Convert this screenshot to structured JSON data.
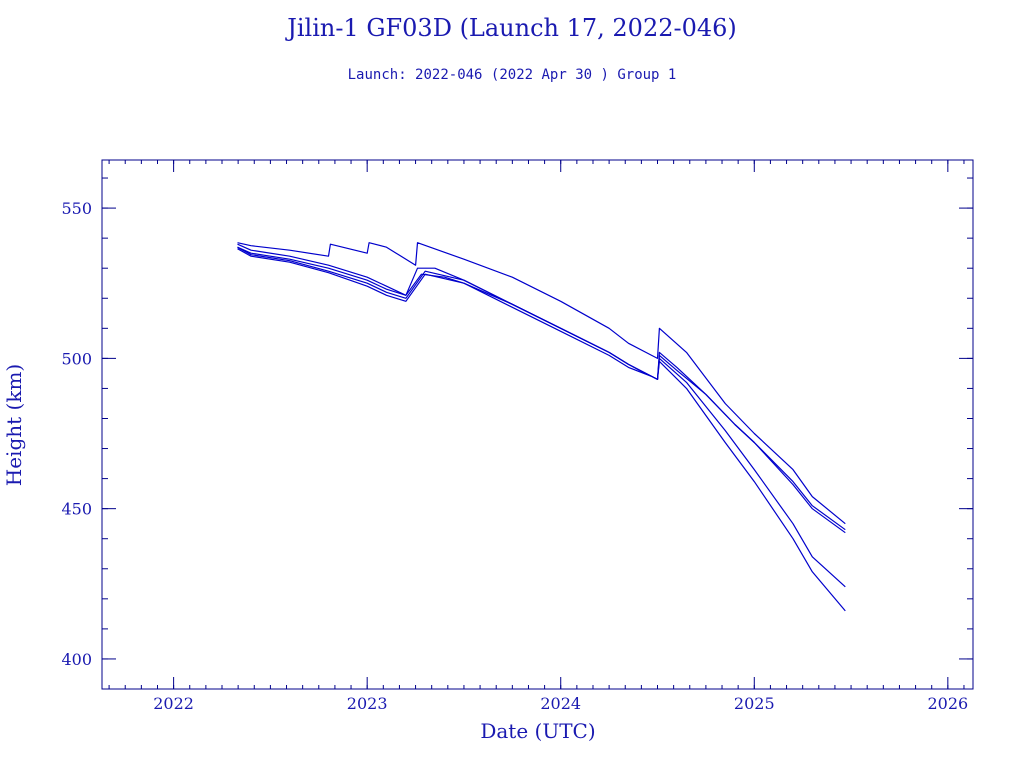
{
  "title": "Jilin-1 GF03D (Launch 17, 2022-046)",
  "subtitle": "Launch: 2022-046  (2022 Apr 30 )  Group 1",
  "colors": {
    "axis": "#00008b",
    "line": "#0000cc",
    "text": "#1a1ab0"
  },
  "chart_data": {
    "type": "line",
    "title": "Jilin-1 GF03D (Launch 17, 2022-046)",
    "subtitle": "Launch: 2022-046  (2022 Apr 30 )  Group 1",
    "xlabel": "Date (UTC)",
    "ylabel": "Height (km)",
    "xlim": [
      2021.63,
      2026.13
    ],
    "ylim": [
      390,
      566
    ],
    "xticks": [
      2022,
      2023,
      2024,
      2025,
      2026
    ],
    "xtick_labels": [
      "2022",
      "2023",
      "2024",
      "2025",
      "2026"
    ],
    "yticks": [
      400,
      450,
      500,
      550
    ],
    "ytick_labels": [
      "400",
      "450",
      "500",
      "550"
    ],
    "grid": false,
    "legend": "none",
    "series": [
      {
        "x": [
          2022.33,
          2022.4,
          2022.6,
          2022.8,
          2022.81,
          2023.0,
          2023.01,
          2023.1,
          2023.15,
          2023.25,
          2023.26,
          2023.5,
          2023.75,
          2024.0,
          2024.25,
          2024.35,
          2024.47,
          2024.5,
          2024.51,
          2024.65,
          2024.85,
          2025.0,
          2025.2,
          2025.3,
          2025.47
        ],
        "y": [
          538.5,
          537.5,
          536,
          534,
          538,
          535,
          538.5,
          537,
          535,
          531,
          538.5,
          533,
          527,
          519,
          510,
          505,
          501,
          500,
          510,
          502,
          485,
          475,
          463,
          454,
          445
        ]
      },
      {
        "x": [
          2022.33,
          2022.4,
          2022.6,
          2022.8,
          2023.0,
          2023.1,
          2023.2,
          2023.26,
          2023.35,
          2023.5,
          2023.75,
          2024.0,
          2024.25,
          2024.35,
          2024.47,
          2024.5,
          2024.51,
          2024.6,
          2024.75,
          2024.9,
          2025.0,
          2025.2,
          2025.3,
          2025.47
        ],
        "y": [
          538,
          536,
          534,
          531,
          527,
          524,
          521,
          530,
          530,
          526,
          518,
          510,
          502,
          498,
          494,
          493,
          502,
          497,
          488,
          478,
          472,
          459,
          451,
          443
        ]
      },
      {
        "x": [
          2022.33,
          2022.4,
          2022.6,
          2022.8,
          2023.0,
          2023.1,
          2023.2,
          2023.28,
          2023.4,
          2023.5,
          2023.75,
          2024.0,
          2024.25,
          2024.35,
          2024.47,
          2024.5,
          2024.51,
          2024.6,
          2024.75,
          2024.9,
          2025.0,
          2025.2,
          2025.3,
          2025.47
        ],
        "y": [
          537,
          535,
          533,
          530,
          526,
          523,
          521,
          528,
          527,
          525,
          518,
          510,
          502,
          498,
          494,
          493,
          501,
          496,
          488,
          478,
          472,
          458,
          450,
          442
        ]
      },
      {
        "x": [
          2022.33,
          2022.4,
          2022.6,
          2022.8,
          2023.0,
          2023.1,
          2023.2,
          2023.3,
          2023.5,
          2023.75,
          2024.0,
          2024.25,
          2024.35,
          2024.47,
          2024.5,
          2024.51,
          2024.65,
          2024.85,
          2025.0,
          2025.2,
          2025.3,
          2025.47
        ],
        "y": [
          537,
          534.5,
          532.5,
          529,
          525,
          522,
          520,
          529,
          526,
          518,
          510,
          502,
          498,
          494,
          493,
          500,
          492,
          476,
          463,
          445,
          434,
          424
        ]
      },
      {
        "x": [
          2022.33,
          2022.4,
          2022.6,
          2022.8,
          2023.0,
          2023.1,
          2023.2,
          2023.3,
          2023.5,
          2023.75,
          2024.0,
          2024.25,
          2024.35,
          2024.47,
          2024.5,
          2024.51,
          2024.65,
          2024.85,
          2025.0,
          2025.2,
          2025.3,
          2025.47
        ],
        "y": [
          536.5,
          534,
          532,
          528.5,
          524,
          521,
          519,
          528,
          525,
          517,
          509,
          501,
          497,
          494,
          493,
          499,
          490,
          472,
          459,
          440,
          429,
          416
        ]
      }
    ]
  }
}
